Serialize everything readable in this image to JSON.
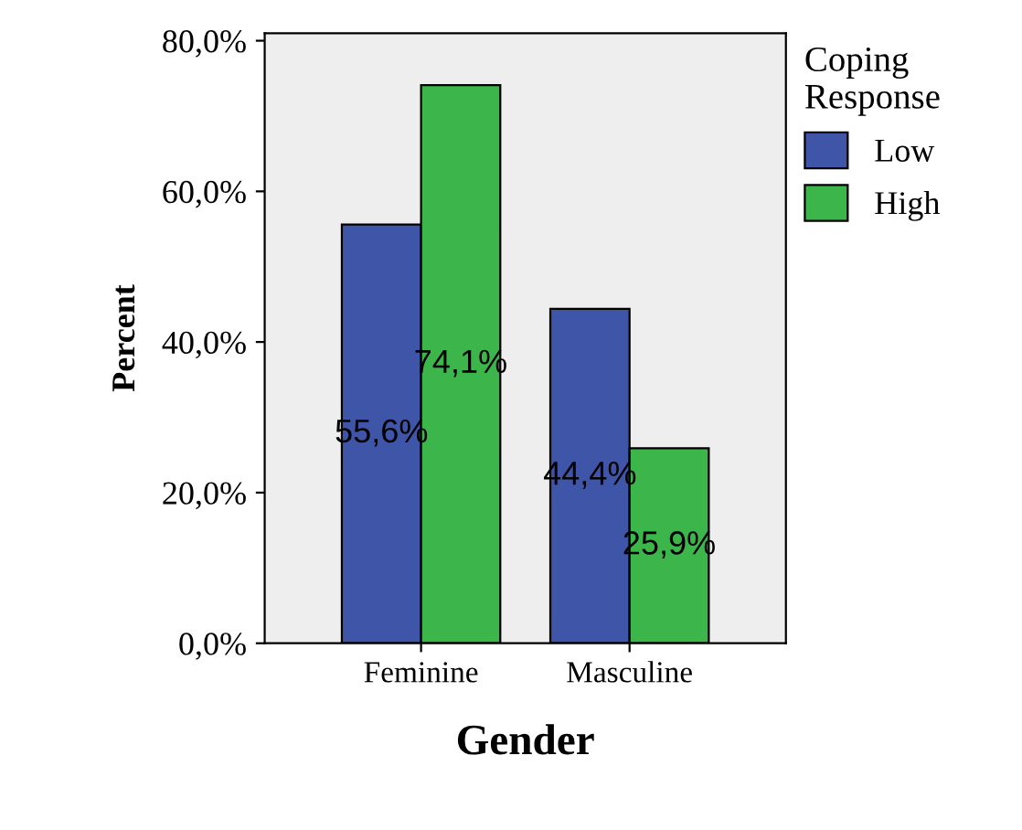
{
  "chart_data": {
    "type": "bar",
    "xlabel": "Gender",
    "ylabel": "Percent",
    "legend_title": "Coping Response",
    "categories": [
      "Feminine",
      "Masculine"
    ],
    "series": [
      {
        "name": "Low",
        "color": "#3e55a8",
        "values": [
          55.6,
          44.4
        ],
        "value_labels": [
          "55,6%",
          "44,4%"
        ]
      },
      {
        "name": "High",
        "color": "#3cb54a",
        "values": [
          74.1,
          25.9
        ],
        "value_labels": [
          "74,1%",
          "25,9%"
        ]
      }
    ],
    "ylim": [
      0,
      81
    ],
    "yticks": [
      {
        "value": 0,
        "label": "0,0%"
      },
      {
        "value": 20,
        "label": "20,0%"
      },
      {
        "value": 40,
        "label": "40,0%"
      },
      {
        "value": 60,
        "label": "60,0%"
      },
      {
        "value": 80,
        "label": "80,0%"
      }
    ],
    "grid": false,
    "legend": "right"
  }
}
